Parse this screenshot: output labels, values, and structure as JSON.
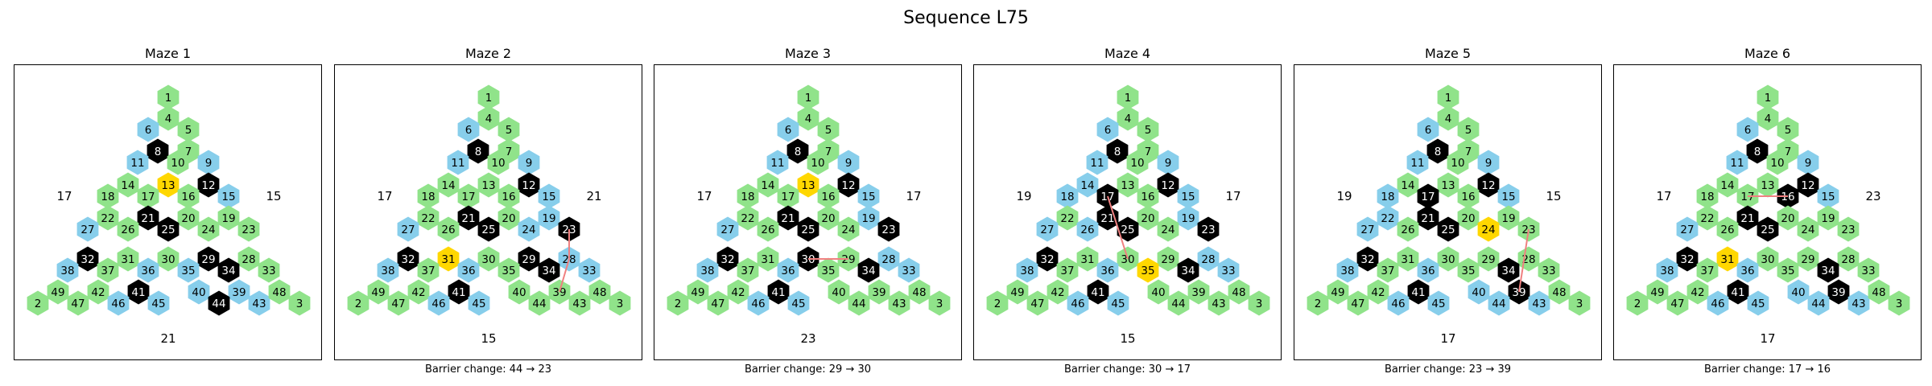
{
  "title": "Sequence L75",
  "colors": {
    "normal": "#90e38a",
    "special": "#87ceeb",
    "wall": "#000000",
    "goal": "#ffd700",
    "path": "#f08080"
  },
  "grid": {
    "rows": [
      [
        1
      ],
      [
        4,
        5
      ],
      [
        6,
        7,
        9
      ],
      [
        8,
        10,
        12,
        15
      ],
      [
        11,
        13,
        16,
        19,
        23
      ],
      [
        14,
        17,
        20,
        24,
        28,
        33
      ],
      [
        18,
        21,
        25,
        29,
        34,
        39,
        48
      ],
      [
        22,
        26,
        30,
        35,
        40,
        43,
        3
      ],
      [
        27,
        31,
        36,
        44,
        45,
        46,
        47
      ],
      [
        32,
        37,
        41,
        42,
        49,
        2
      ],
      [
        38,
        38
      ]
    ]
  },
  "mazes": [
    {
      "title": "Maze 1",
      "left": "17",
      "right": "15",
      "bottom": "21",
      "caption": "",
      "walls": [
        8,
        12,
        21,
        25,
        29,
        32,
        34,
        41,
        44
      ],
      "goal": [
        13
      ],
      "blue": [
        6,
        9,
        11,
        15,
        27,
        36,
        35,
        38,
        46,
        45,
        40,
        39,
        43
      ],
      "path": []
    },
    {
      "title": "Maze 2",
      "left": "17",
      "right": "21",
      "bottom": "15",
      "caption": "Barrier change: 44 → 23",
      "walls": [
        8,
        12,
        21,
        25,
        29,
        32,
        34,
        41,
        23
      ],
      "goal": [
        31
      ],
      "blue": [
        6,
        9,
        11,
        15,
        19,
        24,
        27,
        36,
        38,
        46,
        45,
        28,
        33
      ],
      "path": [
        39,
        28,
        23
      ]
    },
    {
      "title": "Maze 3",
      "left": "17",
      "right": "17",
      "bottom": "23",
      "caption": "Barrier change: 29 → 30",
      "walls": [
        8,
        12,
        21,
        25,
        32,
        34,
        41,
        23,
        30
      ],
      "goal": [
        13
      ],
      "blue": [
        6,
        9,
        11,
        15,
        19,
        27,
        36,
        38,
        46,
        45,
        28,
        33
      ],
      "path": [
        30,
        29
      ]
    },
    {
      "title": "Maze 4",
      "left": "19",
      "right": "17",
      "bottom": "15",
      "caption": "Barrier change: 30 → 17",
      "walls": [
        8,
        12,
        21,
        25,
        32,
        34,
        41,
        23,
        17
      ],
      "goal": [
        35
      ],
      "blue": [
        6,
        9,
        11,
        14,
        15,
        18,
        19,
        26,
        27,
        36,
        38,
        46,
        45,
        28,
        33
      ],
      "path": [
        17,
        30
      ]
    },
    {
      "title": "Maze 5",
      "left": "19",
      "right": "15",
      "bottom": "17",
      "caption": "Barrier change: 23 → 39",
      "walls": [
        8,
        12,
        17,
        21,
        25,
        32,
        34,
        41,
        39
      ],
      "goal": [
        24
      ],
      "blue": [
        6,
        9,
        11,
        15,
        18,
        22,
        27,
        36,
        38,
        46,
        45,
        40,
        44,
        43
      ],
      "path": [
        23,
        39
      ]
    },
    {
      "title": "Maze 6",
      "left": "17",
      "right": "23",
      "bottom": "17",
      "caption": "Barrier change: 17 → 16",
      "walls": [
        8,
        12,
        16,
        21,
        25,
        32,
        34,
        41,
        39
      ],
      "goal": [
        31
      ],
      "blue": [
        6,
        9,
        11,
        15,
        27,
        36,
        38,
        46,
        45,
        40,
        44,
        43
      ],
      "path": [
        17,
        16
      ]
    }
  ]
}
